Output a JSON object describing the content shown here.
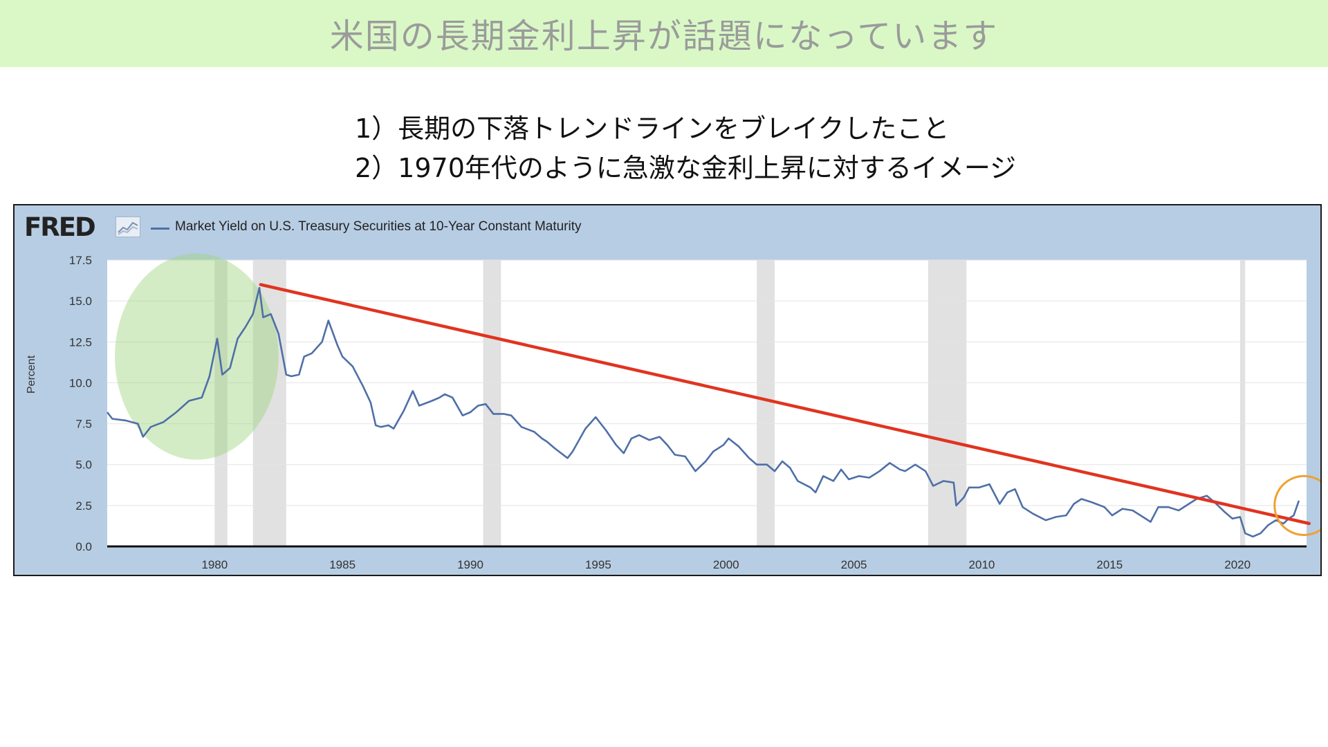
{
  "slide": {
    "title": "米国の長期金利上昇が話題になっています",
    "points": [
      "1）長期の下落トレンドラインをブレイクしたこと",
      "2）1970年代のように急激な金利上昇に対するイメージ"
    ]
  },
  "chart_data": {
    "type": "line",
    "source_logo": "FRED",
    "title": "",
    "legend": "Market Yield on U.S. Treasury Securities at 10-Year Constant Maturity",
    "xlabel": "",
    "ylabel": "Percent",
    "xlim": [
      1975.8,
      2022.7
    ],
    "ylim": [
      0,
      17.5
    ],
    "y_ticks": [
      0.0,
      2.5,
      5.0,
      7.5,
      10.0,
      12.5,
      15.0,
      17.5
    ],
    "y_tick_labels": [
      "0.0",
      "2.5",
      "5.0",
      "7.5",
      "10.0",
      "12.5",
      "15.0",
      "17.5"
    ],
    "x_ticks": [
      1980,
      1985,
      1990,
      1995,
      2000,
      2005,
      2010,
      2015,
      2020
    ],
    "x_tick_labels": [
      "1980",
      "1985",
      "1990",
      "1995",
      "2000",
      "2005",
      "2010",
      "2015",
      "2020"
    ],
    "grid": true,
    "legend_position": "top-left",
    "series": [
      {
        "name": "Market Yield on U.S. Treasury Securities at 10-Year Constant Maturity",
        "color": "#4f6fa7",
        "points": [
          [
            1975.8,
            8.2
          ],
          [
            1976.0,
            7.8
          ],
          [
            1976.5,
            7.7
          ],
          [
            1977.0,
            7.5
          ],
          [
            1977.2,
            6.7
          ],
          [
            1977.5,
            7.3
          ],
          [
            1978.0,
            7.6
          ],
          [
            1978.5,
            8.2
          ],
          [
            1979.0,
            8.9
          ],
          [
            1979.5,
            9.1
          ],
          [
            1979.8,
            10.4
          ],
          [
            1980.1,
            12.7
          ],
          [
            1980.3,
            10.5
          ],
          [
            1980.6,
            10.9
          ],
          [
            1980.9,
            12.7
          ],
          [
            1981.2,
            13.4
          ],
          [
            1981.5,
            14.2
          ],
          [
            1981.75,
            15.8
          ],
          [
            1981.9,
            14.0
          ],
          [
            1982.2,
            14.2
          ],
          [
            1982.5,
            13.0
          ],
          [
            1982.8,
            10.5
          ],
          [
            1983.0,
            10.4
          ],
          [
            1983.3,
            10.5
          ],
          [
            1983.5,
            11.6
          ],
          [
            1983.8,
            11.8
          ],
          [
            1984.2,
            12.5
          ],
          [
            1984.45,
            13.8
          ],
          [
            1984.8,
            12.3
          ],
          [
            1985.0,
            11.6
          ],
          [
            1985.4,
            11.0
          ],
          [
            1985.8,
            9.8
          ],
          [
            1986.1,
            8.8
          ],
          [
            1986.3,
            7.4
          ],
          [
            1986.5,
            7.3
          ],
          [
            1986.8,
            7.4
          ],
          [
            1987.0,
            7.2
          ],
          [
            1987.4,
            8.3
          ],
          [
            1987.75,
            9.5
          ],
          [
            1988.0,
            8.6
          ],
          [
            1988.5,
            8.9
          ],
          [
            1988.8,
            9.1
          ],
          [
            1989.0,
            9.3
          ],
          [
            1989.3,
            9.1
          ],
          [
            1989.7,
            8.0
          ],
          [
            1990.0,
            8.2
          ],
          [
            1990.3,
            8.6
          ],
          [
            1990.6,
            8.7
          ],
          [
            1990.9,
            8.1
          ],
          [
            1991.3,
            8.1
          ],
          [
            1991.6,
            8.0
          ],
          [
            1992.0,
            7.3
          ],
          [
            1992.5,
            7.0
          ],
          [
            1992.8,
            6.6
          ],
          [
            1993.0,
            6.4
          ],
          [
            1993.3,
            6.0
          ],
          [
            1993.8,
            5.4
          ],
          [
            1994.0,
            5.8
          ],
          [
            1994.5,
            7.2
          ],
          [
            1994.9,
            7.9
          ],
          [
            1995.3,
            7.1
          ],
          [
            1995.7,
            6.2
          ],
          [
            1996.0,
            5.7
          ],
          [
            1996.3,
            6.6
          ],
          [
            1996.6,
            6.8
          ],
          [
            1997.0,
            6.5
          ],
          [
            1997.4,
            6.7
          ],
          [
            1997.7,
            6.2
          ],
          [
            1998.0,
            5.6
          ],
          [
            1998.4,
            5.5
          ],
          [
            1998.8,
            4.6
          ],
          [
            1999.2,
            5.2
          ],
          [
            1999.5,
            5.8
          ],
          [
            1999.9,
            6.2
          ],
          [
            2000.1,
            6.6
          ],
          [
            2000.5,
            6.1
          ],
          [
            2000.9,
            5.4
          ],
          [
            2001.2,
            5.0
          ],
          [
            2001.6,
            5.0
          ],
          [
            2001.9,
            4.6
          ],
          [
            2002.2,
            5.2
          ],
          [
            2002.5,
            4.8
          ],
          [
            2002.8,
            4.0
          ],
          [
            2003.3,
            3.6
          ],
          [
            2003.5,
            3.3
          ],
          [
            2003.8,
            4.3
          ],
          [
            2004.2,
            4.0
          ],
          [
            2004.5,
            4.7
          ],
          [
            2004.8,
            4.1
          ],
          [
            2005.2,
            4.3
          ],
          [
            2005.6,
            4.2
          ],
          [
            2006.0,
            4.6
          ],
          [
            2006.4,
            5.1
          ],
          [
            2006.8,
            4.7
          ],
          [
            2007.0,
            4.6
          ],
          [
            2007.4,
            5.0
          ],
          [
            2007.8,
            4.6
          ],
          [
            2008.1,
            3.7
          ],
          [
            2008.5,
            4.0
          ],
          [
            2008.9,
            3.9
          ],
          [
            2009.0,
            2.5
          ],
          [
            2009.3,
            3.0
          ],
          [
            2009.5,
            3.6
          ],
          [
            2009.9,
            3.6
          ],
          [
            2010.3,
            3.8
          ],
          [
            2010.7,
            2.6
          ],
          [
            2011.0,
            3.3
          ],
          [
            2011.3,
            3.5
          ],
          [
            2011.6,
            2.4
          ],
          [
            2012.0,
            2.0
          ],
          [
            2012.5,
            1.6
          ],
          [
            2012.9,
            1.8
          ],
          [
            2013.3,
            1.9
          ],
          [
            2013.6,
            2.6
          ],
          [
            2013.9,
            2.9
          ],
          [
            2014.3,
            2.7
          ],
          [
            2014.8,
            2.4
          ],
          [
            2015.1,
            1.9
          ],
          [
            2015.5,
            2.3
          ],
          [
            2015.9,
            2.2
          ],
          [
            2016.3,
            1.8
          ],
          [
            2016.6,
            1.5
          ],
          [
            2016.9,
            2.4
          ],
          [
            2017.3,
            2.4
          ],
          [
            2017.7,
            2.2
          ],
          [
            2018.0,
            2.5
          ],
          [
            2018.4,
            2.9
          ],
          [
            2018.8,
            3.1
          ],
          [
            2019.1,
            2.7
          ],
          [
            2019.5,
            2.1
          ],
          [
            2019.8,
            1.7
          ],
          [
            2020.1,
            1.8
          ],
          [
            2020.3,
            0.8
          ],
          [
            2020.6,
            0.6
          ],
          [
            2020.9,
            0.8
          ],
          [
            2021.2,
            1.3
          ],
          [
            2021.5,
            1.6
          ],
          [
            2021.8,
            1.4
          ],
          [
            2022.0,
            1.7
          ],
          [
            2022.2,
            1.9
          ],
          [
            2022.4,
            2.8
          ]
        ]
      }
    ],
    "recessions": [
      [
        1980.0,
        1980.5
      ],
      [
        1981.5,
        1982.8
      ],
      [
        1990.5,
        1991.2
      ],
      [
        2001.2,
        2001.9
      ],
      [
        2007.9,
        2009.4
      ],
      [
        2020.1,
        2020.3
      ]
    ],
    "annotations": {
      "trendline": {
        "color": "#e03420",
        "from": [
          1981.8,
          16.0
        ],
        "to": [
          2022.8,
          1.4
        ]
      },
      "highlight_ellipse": {
        "color": "#9ed47e",
        "center": [
          1979.3,
          11.6
        ],
        "rx_years": 3.2,
        "ry_value": 6.3
      },
      "breakout_circle": {
        "color": "#f0a030",
        "center": [
          2022.6,
          2.5
        ],
        "r_value": 1.8
      }
    }
  }
}
